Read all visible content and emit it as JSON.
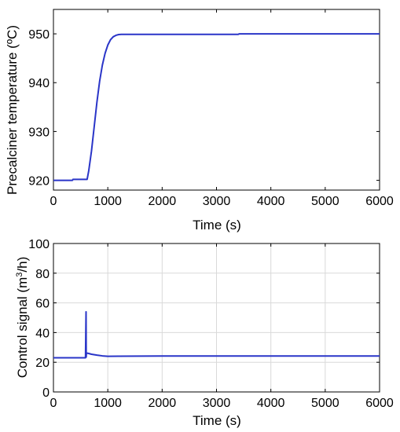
{
  "figure": {
    "background": "#ffffff",
    "axis_color": "#000000",
    "grid_color": "#d9d9d9",
    "line_color": "#2a35c8"
  },
  "chart_data": [
    {
      "type": "line",
      "title": "",
      "xlabel": "Time (s)",
      "ylabel": "Precalciner temperature (ºC)",
      "xlim": [
        0,
        6000
      ],
      "ylim": [
        918,
        955
      ],
      "xticks": [
        0,
        1000,
        2000,
        3000,
        4000,
        5000,
        6000
      ],
      "yticks": [
        920,
        930,
        940,
        950
      ],
      "grid": false,
      "legend": "none",
      "series": [
        {
          "color": "#2a35c8",
          "x": [
            0,
            350,
            360,
            620,
            650,
            700,
            750,
            800,
            850,
            900,
            950,
            1000,
            1050,
            1100,
            1150,
            1200,
            1250,
            1300,
            2000,
            3000,
            3400,
            3420,
            4000,
            5000,
            6000
          ],
          "y": [
            920.0,
            920.0,
            920.2,
            920.2,
            922.0,
            926.0,
            931.0,
            936.0,
            940.3,
            943.6,
            946.0,
            947.7,
            948.8,
            949.4,
            949.7,
            949.85,
            949.9,
            949.9,
            949.9,
            949.9,
            949.9,
            950.0,
            950.0,
            950.0,
            950.0
          ]
        }
      ]
    },
    {
      "type": "line",
      "title": "",
      "xlabel": "Time (s)",
      "ylabel": "Control signal (m³/h)",
      "ylabel_parts": [
        "Control signal (m",
        "3",
        "/h)"
      ],
      "xlim": [
        0,
        6000
      ],
      "ylim": [
        0,
        100
      ],
      "xticks": [
        0,
        1000,
        2000,
        3000,
        4000,
        5000,
        6000
      ],
      "yticks": [
        0,
        20,
        40,
        60,
        80,
        100
      ],
      "grid": true,
      "legend": "none",
      "series": [
        {
          "color": "#2a35c8",
          "x": [
            0,
            590,
            600,
            603,
            606,
            610,
            640,
            700,
            800,
            900,
            1000,
            1200,
            2000,
            3000,
            4000,
            5000,
            6000
          ],
          "y": [
            23.0,
            23.0,
            54.0,
            23.5,
            26.0,
            26.2,
            26.0,
            25.4,
            24.8,
            24.3,
            24.0,
            24.1,
            24.2,
            24.2,
            24.2,
            24.2,
            24.2
          ]
        }
      ]
    }
  ]
}
